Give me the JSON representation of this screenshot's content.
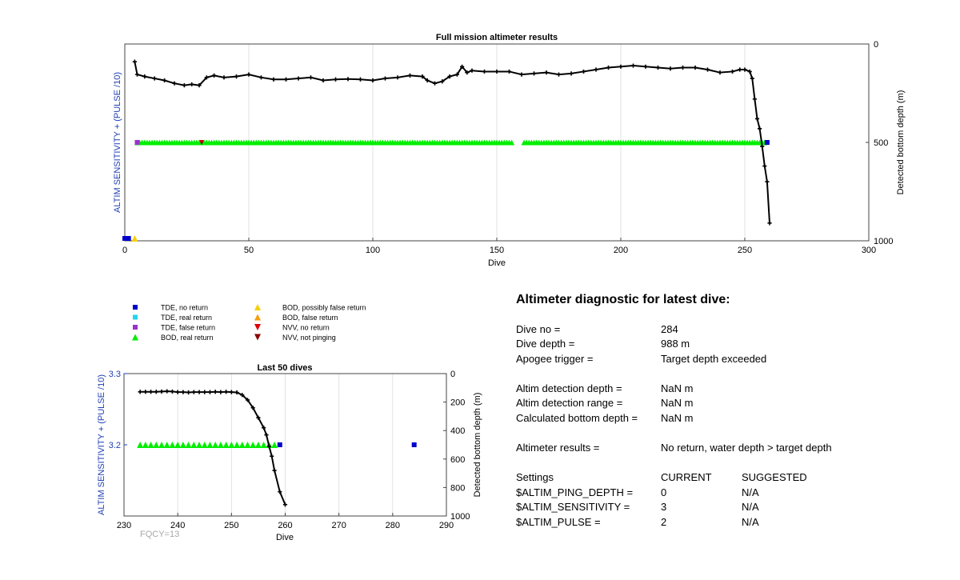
{
  "colors": {
    "tde_no_return": "#0000cc",
    "tde_real_return": "#22d3ee",
    "tde_false_return": "#9933cc",
    "bod_real_return": "#00ee00",
    "bod_possibly_false": "#f5d000",
    "bod_false_return": "#f59e0b",
    "nvv_no_return": "#dd0000",
    "nvv_not_pinging": "#8b0000",
    "depth_line": "#000000",
    "left_axis": "#1f3fb4"
  },
  "chart_data": [
    {
      "type": "scatter",
      "title": "Full mission altimeter results",
      "xlabel": "Dive",
      "ylabel": "ALTIM SENSITIVITY + (PULSE /10)",
      "y2label": "Detected bottom depth (m)",
      "xlim": [
        0,
        300
      ],
      "xticks": [
        "0",
        "50",
        "100",
        "150",
        "200",
        "250",
        "300"
      ],
      "y2ticks": [
        "0",
        "500",
        "1000"
      ],
      "grid": "vertical",
      "depth_series": {
        "name": "Detected bottom depth",
        "points": [
          [
            4,
            90
          ],
          [
            5,
            155
          ],
          [
            8,
            165
          ],
          [
            12,
            175
          ],
          [
            16,
            185
          ],
          [
            20,
            200
          ],
          [
            24,
            210
          ],
          [
            27,
            205
          ],
          [
            30,
            210
          ],
          [
            33,
            170
          ],
          [
            36,
            160
          ],
          [
            40,
            170
          ],
          [
            45,
            165
          ],
          [
            50,
            155
          ],
          [
            55,
            170
          ],
          [
            60,
            180
          ],
          [
            65,
            180
          ],
          [
            70,
            175
          ],
          [
            75,
            170
          ],
          [
            80,
            185
          ],
          [
            85,
            180
          ],
          [
            90,
            178
          ],
          [
            95,
            180
          ],
          [
            100,
            185
          ],
          [
            105,
            175
          ],
          [
            110,
            170
          ],
          [
            115,
            160
          ],
          [
            120,
            165
          ],
          [
            122,
            185
          ],
          [
            125,
            200
          ],
          [
            128,
            190
          ],
          [
            131,
            165
          ],
          [
            134,
            155
          ],
          [
            136,
            115
          ],
          [
            138,
            145
          ],
          [
            140,
            135
          ],
          [
            145,
            140
          ],
          [
            150,
            140
          ],
          [
            155,
            140
          ],
          [
            160,
            155
          ],
          [
            165,
            150
          ],
          [
            170,
            145
          ],
          [
            175,
            155
          ],
          [
            180,
            150
          ],
          [
            185,
            140
          ],
          [
            190,
            130
          ],
          [
            195,
            120
          ],
          [
            200,
            115
          ],
          [
            205,
            110
          ],
          [
            210,
            115
          ],
          [
            215,
            120
          ],
          [
            220,
            125
          ],
          [
            225,
            120
          ],
          [
            230,
            120
          ],
          [
            235,
            130
          ],
          [
            240,
            145
          ],
          [
            245,
            140
          ],
          [
            248,
            130
          ],
          [
            250,
            130
          ],
          [
            252,
            140
          ],
          [
            253,
            175
          ],
          [
            254,
            280
          ],
          [
            255,
            380
          ],
          [
            256,
            430
          ],
          [
            257,
            520
          ],
          [
            258,
            620
          ],
          [
            259,
            700
          ],
          [
            260,
            910
          ]
        ]
      },
      "bod_real_return": {
        "x_range": [
          5,
          258
        ],
        "gaps": [
          [
            157,
            160
          ]
        ],
        "y2_level": 500
      },
      "tde_no_return": [
        [
          0,
          1000
        ],
        [
          1.5,
          1000
        ],
        [
          259,
          500
        ]
      ],
      "tde_false_return": [
        [
          5,
          500
        ]
      ],
      "nvv_no_return": [
        [
          31,
          500
        ]
      ],
      "nvv_not_pinging": [
        [
          31,
          505
        ]
      ],
      "bod_possibly_false": [
        [
          4,
          1000
        ]
      ]
    },
    {
      "type": "scatter",
      "title": "Last 50 dives",
      "xlabel": "Dive",
      "ylabel": "ALTIM SENSITIVITY + (PULSE /10)",
      "y2label": "Detected bottom depth (m)",
      "xlim": [
        230,
        290
      ],
      "ylim": [
        3.1,
        3.3
      ],
      "y2lim": [
        0,
        1000
      ],
      "xticks": [
        "230",
        "240",
        "250",
        "260",
        "270",
        "280",
        "290"
      ],
      "yticks": [
        "3.2",
        "3.3"
      ],
      "y2ticks": [
        "0",
        "200",
        "400",
        "600",
        "800",
        "1000"
      ],
      "grid": "vertical",
      "depth_series": {
        "name": "Detected bottom depth",
        "points": [
          [
            233,
            128
          ],
          [
            234,
            128
          ],
          [
            235,
            128
          ],
          [
            236,
            128
          ],
          [
            237,
            126
          ],
          [
            238,
            124
          ],
          [
            239,
            126
          ],
          [
            240,
            130
          ],
          [
            241,
            130
          ],
          [
            242,
            132
          ],
          [
            243,
            130
          ],
          [
            244,
            130
          ],
          [
            245,
            130
          ],
          [
            246,
            130
          ],
          [
            247,
            128
          ],
          [
            248,
            130
          ],
          [
            249,
            128
          ],
          [
            250,
            130
          ],
          [
            251,
            132
          ],
          [
            252,
            150
          ],
          [
            253,
            185
          ],
          [
            254,
            240
          ],
          [
            255,
            310
          ],
          [
            256,
            380
          ],
          [
            256.5,
            430
          ],
          [
            257,
            510
          ],
          [
            257.5,
            580
          ],
          [
            258,
            680
          ],
          [
            259,
            830
          ],
          [
            260,
            920
          ]
        ]
      },
      "bod_real_return": {
        "x_range": [
          233,
          258
        ],
        "y_level": 3.2
      },
      "tde_no_return": [
        [
          259,
          3.2
        ],
        [
          284,
          3.2
        ]
      ]
    }
  ],
  "legend": {
    "col1": [
      {
        "label": "TDE, no return",
        "marker": "square",
        "color_key": "tde_no_return"
      },
      {
        "label": "TDE, real return",
        "marker": "square",
        "color_key": "tde_real_return"
      },
      {
        "label": "TDE, false return",
        "marker": "square",
        "color_key": "tde_false_return"
      },
      {
        "label": "BOD, real return",
        "marker": "triangle-up",
        "color_key": "bod_real_return"
      }
    ],
    "col2": [
      {
        "label": "BOD, possibly false return",
        "marker": "triangle-up",
        "color_key": "bod_possibly_false"
      },
      {
        "label": "BOD, false return",
        "marker": "triangle-up",
        "color_key": "bod_false_return"
      },
      {
        "label": "NVV, no return",
        "marker": "triangle-down",
        "color_key": "nvv_no_return"
      },
      {
        "label": "NVV, not pinging",
        "marker": "triangle-down",
        "color_key": "nvv_not_pinging"
      }
    ]
  },
  "fqcy_label": "FQCY=13",
  "diagnostic": {
    "title": "Altimeter diagnostic for latest dive:",
    "dive_no_label": "Dive no =",
    "dive_no_value": "284",
    "dive_depth_label": "Dive depth =",
    "dive_depth_value": "988 m",
    "apogee_label": "Apogee trigger =",
    "apogee_value": "Target depth exceeded",
    "altim_depth_label": "Altim detection depth =",
    "altim_depth_value": "NaN m",
    "altim_range_label": "Altim detection range =",
    "altim_range_value": "NaN m",
    "calc_depth_label": "Calculated bottom depth =",
    "calc_depth_value": "NaN m",
    "results_label": "Altimeter results =",
    "results_value": "No return, water depth > target depth",
    "settings_label": "Settings",
    "current_label": "CURRENT",
    "suggested_label": "SUGGESTED",
    "settings": [
      {
        "name": "$ALTIM_PING_DEPTH =",
        "current": "0",
        "suggested": "N/A"
      },
      {
        "name": "$ALTIM_SENSITIVITY =",
        "current": "3",
        "suggested": "N/A"
      },
      {
        "name": "$ALTIM_PULSE =",
        "current": "2",
        "suggested": "N/A"
      }
    ]
  }
}
